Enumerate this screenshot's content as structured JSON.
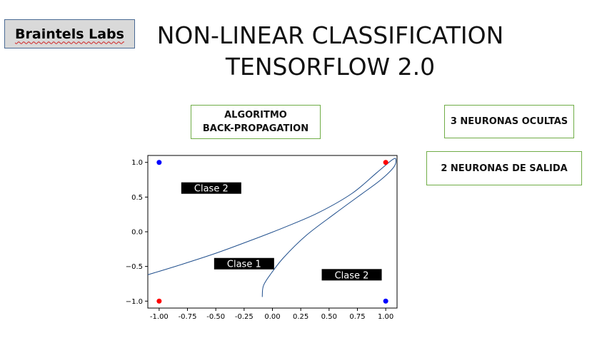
{
  "brand": {
    "label": "Braintels Labs"
  },
  "title": {
    "line1": "NON-LINEAR CLASSIFICATION",
    "line2": "TENSORFLOW 2.0"
  },
  "info_boxes": {
    "algorithm_line1": "ALGORITMO",
    "algorithm_line2": "BACK-PROPAGATION",
    "hidden_neurons": "3 NEURONAS OCULTAS",
    "output_neurons": "2 NEURONAS DE SALIDA"
  },
  "chart_data": {
    "type": "scatter",
    "xlim": [
      -1.1,
      1.1
    ],
    "ylim": [
      -1.1,
      1.1
    ],
    "x_ticks": [
      "-1.00",
      "-0.75",
      "-0.50",
      "-0.25",
      "0.00",
      "0.25",
      "0.50",
      "0.75",
      "1.00"
    ],
    "x_tick_values": [
      -1.0,
      -0.75,
      -0.5,
      -0.25,
      0.0,
      0.25,
      0.5,
      0.75,
      1.0
    ],
    "y_ticks": [
      "1.0",
      "0.5",
      "0.0",
      "−0.5",
      "−1.0"
    ],
    "y_tick_values": [
      1.0,
      0.5,
      0.0,
      -0.5,
      -1.0
    ],
    "points": [
      {
        "x": -1.0,
        "y": 1.0,
        "color": "#0000ff"
      },
      {
        "x": 1.0,
        "y": 1.0,
        "color": "#ff0000"
      },
      {
        "x": -1.0,
        "y": -1.0,
        "color": "#ff0000"
      },
      {
        "x": 1.0,
        "y": -1.0,
        "color": "#0000ff"
      }
    ],
    "boundary_color": "#1f4e8c",
    "boundary": [
      [
        -1.1,
        -0.62
      ],
      [
        -0.8,
        -0.47
      ],
      [
        -0.5,
        -0.31
      ],
      [
        -0.2,
        -0.13
      ],
      [
        0.1,
        0.06
      ],
      [
        0.4,
        0.27
      ],
      [
        0.7,
        0.55
      ],
      [
        0.92,
        0.85
      ],
      [
        1.06,
        1.04
      ],
      [
        1.09,
        1.04
      ],
      [
        1.07,
        0.93
      ],
      [
        0.95,
        0.74
      ],
      [
        0.75,
        0.5
      ],
      [
        0.55,
        0.26
      ],
      [
        0.3,
        -0.05
      ],
      [
        0.1,
        -0.37
      ],
      [
        -0.02,
        -0.62
      ],
      [
        -0.08,
        -0.78
      ],
      [
        -0.09,
        -0.94
      ]
    ],
    "annotations": [
      {
        "text": "Clase 2",
        "x": -0.54,
        "y": 0.63
      },
      {
        "text": "Clase 1",
        "x": -0.25,
        "y": -0.46
      },
      {
        "text": "Clase 2",
        "x": 0.7,
        "y": -0.62
      }
    ]
  }
}
